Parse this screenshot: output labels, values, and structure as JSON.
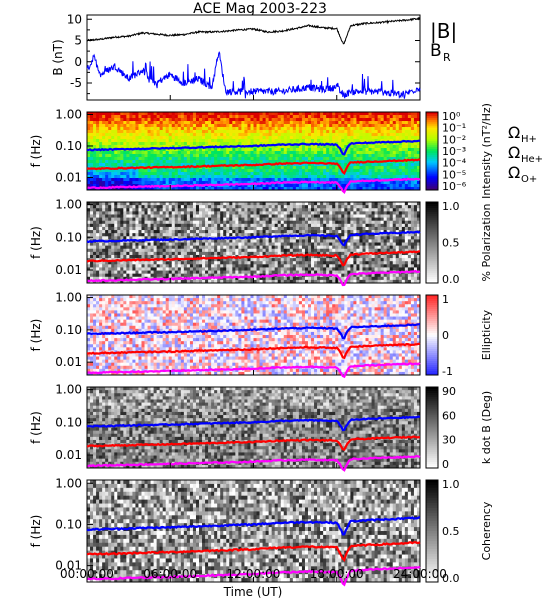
{
  "chart_data": [
    {
      "type": "line",
      "title": "ACE Mag 2003-223",
      "ylabel": "B (nT)",
      "ylim": [
        -9,
        11
      ],
      "yticks": [
        "10",
        "5",
        "0",
        "-5"
      ],
      "legend": [
        {
          "label": "|B|",
          "color": "#000000"
        },
        {
          "label": "B_R",
          "color": "#0000ff"
        }
      ],
      "series": [
        {
          "name": "|B|",
          "color": "#000000",
          "x": [
            0,
            1,
            2,
            3,
            4,
            5,
            6,
            7,
            8,
            9,
            10,
            11,
            12,
            13,
            14,
            15,
            16,
            17,
            18,
            18.5,
            19,
            20,
            21,
            22,
            23,
            24
          ],
          "values": [
            5.0,
            5.3,
            5.8,
            6.0,
            6.8,
            6.5,
            6.2,
            6.4,
            7.0,
            7.0,
            7.2,
            7.5,
            7.7,
            7.0,
            7.2,
            7.8,
            8.5,
            8.0,
            7.8,
            4.0,
            8.5,
            9.0,
            9.2,
            9.5,
            9.8,
            10.2
          ]
        },
        {
          "name": "B_R",
          "color": "#0000ff",
          "x": [
            0,
            0.5,
            1,
            2,
            3,
            4,
            5,
            6,
            7,
            8,
            9,
            9.5,
            10,
            11,
            12,
            13,
            14,
            15,
            16,
            17,
            18,
            18.5,
            19,
            20,
            21,
            22,
            23,
            24
          ],
          "values": [
            -2.0,
            1.0,
            -3.0,
            -1.0,
            -4.0,
            -2.0,
            -5.0,
            -3.0,
            -5.0,
            -4.0,
            -6.0,
            2.5,
            -7.0,
            -7.0,
            -7.0,
            -7.0,
            -7.0,
            -6.5,
            -6.0,
            -6.5,
            -6.0,
            -8.0,
            -7.0,
            -7.0,
            -7.0,
            -7.5,
            -7.5,
            -6.0
          ]
        }
      ]
    },
    {
      "type": "heatmap",
      "ylabel": "f (Hz)",
      "colorbar_label": "Intensity (nT²/Hz)",
      "colorbar_ticks": [
        "10⁰",
        "10⁻¹",
        "10⁻²",
        "10⁻³",
        "10⁻⁴",
        "10⁻⁵",
        "10⁻⁶"
      ],
      "colorscale": "rainbow",
      "overlay_labels": [
        {
          "label": "ΩH+",
          "color": "#0000ff"
        },
        {
          "label": "ΩHe+",
          "color": "#ff0000"
        },
        {
          "label": "ΩO+",
          "color": "#ff00ff"
        }
      ]
    },
    {
      "type": "heatmap",
      "ylabel": "f (Hz)",
      "colorbar_label": "% Polarization",
      "colorbar_ticks": [
        "1.0",
        "0.5",
        "0.0"
      ],
      "colorscale": "greyscale"
    },
    {
      "type": "heatmap",
      "ylabel": "f (Hz)",
      "colorbar_label": "Ellipticity",
      "colorbar_ticks": [
        "1",
        "0",
        "-1"
      ],
      "colorscale": "blue-white-red"
    },
    {
      "type": "heatmap",
      "ylabel": "f (Hz)",
      "colorbar_label": "k dot B (Deg)",
      "colorbar_ticks": [
        "90",
        "60",
        "30",
        "0"
      ],
      "colorscale": "greyscale"
    },
    {
      "type": "heatmap",
      "ylabel": "f (Hz)",
      "colorbar_label": "Coherency",
      "colorbar_ticks": [
        "1.0",
        "0.5",
        "0.0"
      ],
      "colorscale": "greyscale"
    }
  ],
  "shared": {
    "freq_ticks": [
      "1.00",
      "0.10",
      "0.01"
    ],
    "freq_range_hz": [
      0.004,
      1.2
    ],
    "time_ticks": [
      "00:00:00",
      "06:00:00",
      "12:00:00",
      "18:00:00",
      "24:00:00"
    ],
    "xlabel": "Time (UT)",
    "xlim_hours": [
      0,
      24
    ],
    "gyro_x_hours": [
      0,
      2,
      4,
      6,
      8,
      10,
      12,
      14,
      16,
      18,
      18.5,
      19,
      20,
      22,
      24
    ],
    "gyro_H_hz": [
      0.075,
      0.078,
      0.082,
      0.085,
      0.09,
      0.095,
      0.1,
      0.11,
      0.115,
      0.11,
      0.05,
      0.12,
      0.125,
      0.135,
      0.145
    ],
    "gyro_colors": {
      "H": "#0000ff",
      "He": "#ff0000",
      "O": "#ff00ff"
    }
  }
}
